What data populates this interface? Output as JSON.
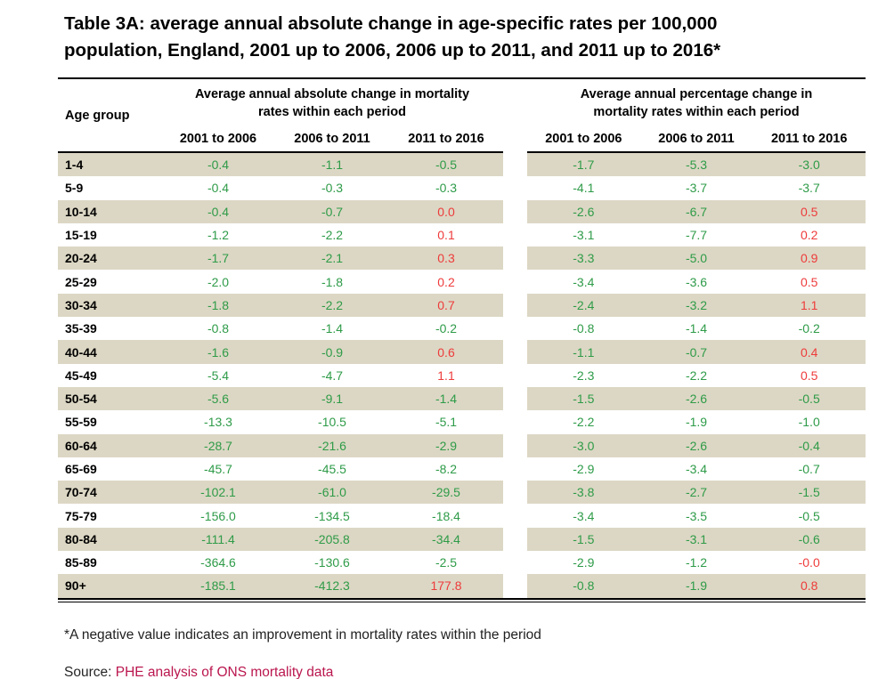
{
  "title": {
    "line1": "Table 3A: average annual absolute change in age-specific rates per 100,000",
    "line2": "population, England, 2001 up to 2006, 2006 up to 2011, and 2011 up to 2016*"
  },
  "header": {
    "age_group": "Age group",
    "group1_title": "Average annual absolute change in mortality rates within each period",
    "group2_title": "Average annual percentage change in mortality rates within each period",
    "periods": [
      "2001 to 2006",
      "2006 to 2011",
      "2011 to 2016"
    ]
  },
  "rows": [
    {
      "age": "1-4",
      "absolute": [
        "-0.4",
        "-1.1",
        "-0.5"
      ],
      "percentage": [
        "-1.7",
        "-5.3",
        "-3.0"
      ]
    },
    {
      "age": "5-9",
      "absolute": [
        "-0.4",
        "-0.3",
        "-0.3"
      ],
      "percentage": [
        "-4.1",
        "-3.7",
        "-3.7"
      ]
    },
    {
      "age": "10-14",
      "absolute": [
        "-0.4",
        "-0.7",
        "0.0"
      ],
      "percentage": [
        "-2.6",
        "-6.7",
        "0.5"
      ]
    },
    {
      "age": "15-19",
      "absolute": [
        "-1.2",
        "-2.2",
        "0.1"
      ],
      "percentage": [
        "-3.1",
        "-7.7",
        "0.2"
      ]
    },
    {
      "age": "20-24",
      "absolute": [
        "-1.7",
        "-2.1",
        "0.3"
      ],
      "percentage": [
        "-3.3",
        "-5.0",
        "0.9"
      ]
    },
    {
      "age": "25-29",
      "absolute": [
        "-2.0",
        "-1.8",
        "0.2"
      ],
      "percentage": [
        "-3.4",
        "-3.6",
        "0.5"
      ]
    },
    {
      "age": "30-34",
      "absolute": [
        "-1.8",
        "-2.2",
        "0.7"
      ],
      "percentage": [
        "-2.4",
        "-3.2",
        "1.1"
      ]
    },
    {
      "age": "35-39",
      "absolute": [
        "-0.8",
        "-1.4",
        "-0.2"
      ],
      "percentage": [
        "-0.8",
        "-1.4",
        "-0.2"
      ]
    },
    {
      "age": "40-44",
      "absolute": [
        "-1.6",
        "-0.9",
        "0.6"
      ],
      "percentage": [
        "-1.1",
        "-0.7",
        "0.4"
      ]
    },
    {
      "age": "45-49",
      "absolute": [
        "-5.4",
        "-4.7",
        "1.1"
      ],
      "percentage": [
        "-2.3",
        "-2.2",
        "0.5"
      ]
    },
    {
      "age": "50-54",
      "absolute": [
        "-5.6",
        "-9.1",
        "-1.4"
      ],
      "percentage": [
        "-1.5",
        "-2.6",
        "-0.5"
      ]
    },
    {
      "age": "55-59",
      "absolute": [
        "-13.3",
        "-10.5",
        "-5.1"
      ],
      "percentage": [
        "-2.2",
        "-1.9",
        "-1.0"
      ]
    },
    {
      "age": "60-64",
      "absolute": [
        "-28.7",
        "-21.6",
        "-2.9"
      ],
      "percentage": [
        "-3.0",
        "-2.6",
        "-0.4"
      ]
    },
    {
      "age": "65-69",
      "absolute": [
        "-45.7",
        "-45.5",
        "-8.2"
      ],
      "percentage": [
        "-2.9",
        "-3.4",
        "-0.7"
      ]
    },
    {
      "age": "70-74",
      "absolute": [
        "-102.1",
        "-61.0",
        "-29.5"
      ],
      "percentage": [
        "-3.8",
        "-2.7",
        "-1.5"
      ]
    },
    {
      "age": "75-79",
      "absolute": [
        "-156.0",
        "-134.5",
        "-18.4"
      ],
      "percentage": [
        "-3.4",
        "-3.5",
        "-0.5"
      ]
    },
    {
      "age": "80-84",
      "absolute": [
        "-111.4",
        "-205.8",
        "-34.4"
      ],
      "percentage": [
        "-1.5",
        "-3.1",
        "-0.6"
      ]
    },
    {
      "age": "85-89",
      "absolute": [
        "-364.6",
        "-130.6",
        "-2.5"
      ],
      "percentage": [
        "-2.9",
        "-1.2",
        "-0.0"
      ]
    },
    {
      "age": "90+",
      "absolute": [
        "-185.1",
        "-412.3",
        "177.8"
      ],
      "percentage": [
        "-0.8",
        "-1.9",
        "0.8"
      ]
    }
  ],
  "footnote": "*A negative value indicates an improvement in mortality rates within the period",
  "source": {
    "label": "Source:",
    "link_text": "PHE analysis of ONS mortality data"
  },
  "colors": {
    "stripe_beige": "#DCD7C4",
    "negative_green": "#2E9B48",
    "positive_red": "#EE3B3B",
    "source_link_pink": "#BA164F"
  }
}
